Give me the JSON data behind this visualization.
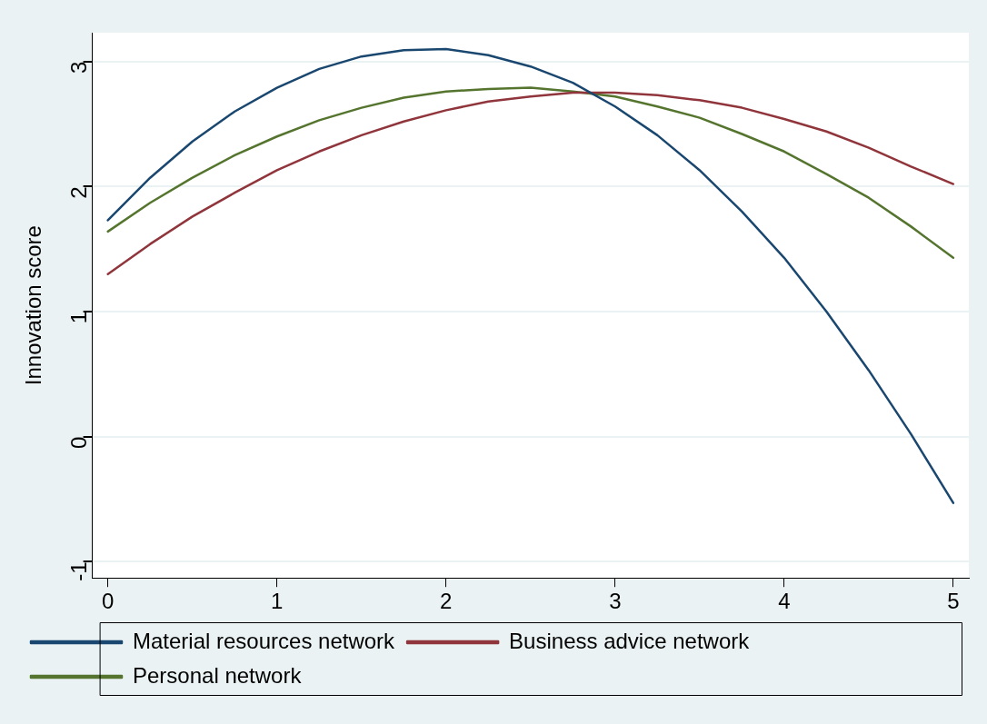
{
  "chart_data": {
    "type": "line",
    "ylabel": "Innovation score",
    "x": [
      0,
      0.25,
      0.5,
      0.75,
      1,
      1.25,
      1.5,
      1.75,
      2,
      2.25,
      2.5,
      2.75,
      3,
      3.25,
      3.5,
      3.75,
      4,
      4.25,
      4.5,
      4.75,
      5
    ],
    "series": [
      {
        "name": "Material resources network",
        "color": "#1a476f",
        "values": [
          1.73,
          2.07,
          2.36,
          2.6,
          2.79,
          2.94,
          3.04,
          3.09,
          3.1,
          3.05,
          2.96,
          2.83,
          2.64,
          2.41,
          2.13,
          1.8,
          1.43,
          1.0,
          0.53,
          0.02,
          -0.53
        ]
      },
      {
        "name": "Business advice network",
        "color": "#90353b",
        "values": [
          1.3,
          1.54,
          1.76,
          1.95,
          2.13,
          2.28,
          2.41,
          2.52,
          2.61,
          2.68,
          2.72,
          2.75,
          2.75,
          2.73,
          2.69,
          2.63,
          2.54,
          2.44,
          2.31,
          2.16,
          2.02
        ]
      },
      {
        "name": "Personal network",
        "color": "#55752f",
        "values": [
          1.64,
          1.87,
          2.07,
          2.25,
          2.4,
          2.53,
          2.63,
          2.71,
          2.76,
          2.78,
          2.79,
          2.76,
          2.72,
          2.64,
          2.55,
          2.42,
          2.28,
          2.1,
          1.91,
          1.68,
          1.43
        ]
      }
    ],
    "xlim": [
      -0.092,
      5.092
    ],
    "xticks": [
      0,
      1,
      2,
      3,
      4,
      5
    ],
    "ylim": [
      -1.13,
      3.23
    ],
    "yticks": [
      -1,
      0,
      1,
      2,
      3
    ],
    "grid": "y",
    "legend": "bottom",
    "marker": "none",
    "line_style": "solid"
  }
}
